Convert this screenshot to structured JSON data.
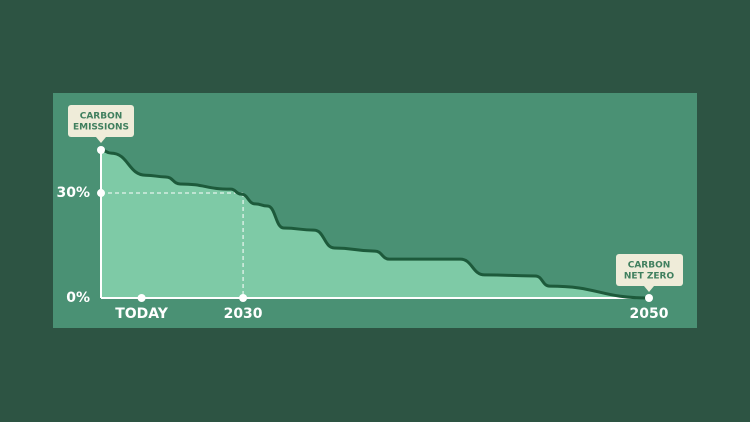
{
  "chart_data": {
    "type": "area",
    "x": [
      2023.0,
      2023.5,
      2025.2,
      2026.2,
      2026.9,
      2029.4,
      2029.9,
      2030.6,
      2031.2,
      2032.0,
      2033.5,
      2034.5,
      2036.5,
      2037.2,
      2040.7,
      2041.9,
      2044.4,
      2045.1,
      2050
    ],
    "values": [
      42.3,
      41.4,
      35.1,
      34.6,
      32.6,
      31.1,
      29.7,
      26.9,
      26.3,
      20,
      19.4,
      14.3,
      13.4,
      11.1,
      11.1,
      6.6,
      6.3,
      3.4,
      0
    ],
    "color": "#7ecaa6",
    "line_color": "#1d5a3b",
    "xlim": [
      2023,
      2050
    ],
    "ylim": [
      0,
      42.3
    ],
    "xticks": [
      {
        "value": 2025,
        "label": "TODAY"
      },
      2030,
      2050
    ],
    "yticks": [
      {
        "value": 0,
        "label": "0%"
      },
      {
        "value": 30,
        "label": "30%"
      }
    ],
    "guide": {
      "x": 2030,
      "y": 30
    },
    "annotations": [
      {
        "lines": [
          "CARBON",
          "EMISSIONS"
        ]
      },
      {
        "lines": [
          "CARBON",
          "NET ZERO"
        ]
      }
    ]
  }
}
